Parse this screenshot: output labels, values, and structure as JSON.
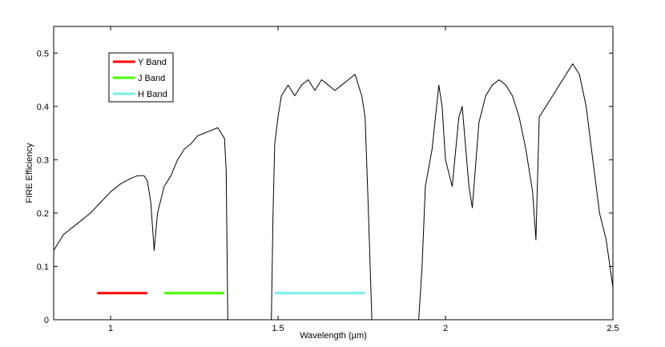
{
  "chart_data": {
    "type": "line",
    "xlabel": "Wavelength (µm)",
    "ylabel": "FIRE Efficiency",
    "xlim": [
      0.83,
      2.5
    ],
    "ylim": [
      0,
      0.55
    ],
    "x_ticks": [
      {
        "value": 1,
        "label": "1"
      },
      {
        "value": 1.5,
        "label": "1.5"
      },
      {
        "value": 2,
        "label": "2"
      },
      {
        "value": 2.5,
        "label": "2.5"
      }
    ],
    "y_ticks": [
      {
        "value": 0,
        "label": "0"
      },
      {
        "value": 0.1,
        "label": "0.1"
      },
      {
        "value": 0.2,
        "label": "0.2"
      },
      {
        "value": 0.3,
        "label": "0.3"
      },
      {
        "value": 0.4,
        "label": "0.4"
      },
      {
        "value": 0.5,
        "label": "0.5"
      }
    ],
    "grid": false,
    "legend_position": "top-left",
    "series": [
      {
        "color": "#000000",
        "x": [
          0.83,
          0.86,
          0.9,
          0.94,
          0.97,
          1.0,
          1.03,
          1.06,
          1.08,
          1.1,
          1.11,
          1.12,
          1.13,
          1.14,
          1.16,
          1.18,
          1.2,
          1.22,
          1.24,
          1.26,
          1.28,
          1.3,
          1.32,
          1.34,
          1.345,
          1.35,
          1.4,
          1.45,
          1.48,
          1.485,
          1.49,
          1.5,
          1.51,
          1.53,
          1.55,
          1.57,
          1.59,
          1.61,
          1.63,
          1.65,
          1.67,
          1.69,
          1.71,
          1.73,
          1.74,
          1.75,
          1.76,
          1.77,
          1.775,
          1.78,
          1.79,
          1.85,
          1.9,
          1.92,
          1.93,
          1.94,
          1.96,
          1.98,
          1.99,
          2.0,
          2.02,
          2.04,
          2.05,
          2.07,
          2.08,
          2.1,
          2.12,
          2.14,
          2.16,
          2.18,
          2.2,
          2.22,
          2.24,
          2.26,
          2.27,
          2.28,
          2.3,
          2.32,
          2.34,
          2.36,
          2.37,
          2.38,
          2.4,
          2.42,
          2.44,
          2.46,
          2.48,
          2.5
        ],
        "y": [
          0.13,
          0.16,
          0.18,
          0.2,
          0.22,
          0.24,
          0.255,
          0.265,
          0.27,
          0.27,
          0.26,
          0.22,
          0.13,
          0.2,
          0.25,
          0.27,
          0.3,
          0.32,
          0.33,
          0.345,
          0.35,
          0.355,
          0.36,
          0.34,
          0.28,
          0.0,
          0.0,
          0.0,
          0.0,
          0.2,
          0.33,
          0.38,
          0.42,
          0.44,
          0.42,
          0.44,
          0.45,
          0.43,
          0.45,
          0.44,
          0.43,
          0.44,
          0.45,
          0.46,
          0.44,
          0.42,
          0.38,
          0.2,
          0.1,
          0.0,
          0.0,
          0.0,
          0.0,
          0.0,
          0.1,
          0.25,
          0.32,
          0.44,
          0.4,
          0.3,
          0.25,
          0.38,
          0.4,
          0.25,
          0.21,
          0.37,
          0.42,
          0.44,
          0.45,
          0.44,
          0.42,
          0.38,
          0.32,
          0.24,
          0.15,
          0.38,
          0.4,
          0.42,
          0.44,
          0.46,
          0.47,
          0.48,
          0.46,
          0.4,
          0.3,
          0.2,
          0.15,
          0.06
        ]
      },
      {
        "name": "Y Band",
        "color": "#ff0000",
        "x": [
          0.96,
          1.11
        ],
        "y": [
          0.05,
          0.05
        ]
      },
      {
        "name": "J Band",
        "color": "#44ff00",
        "x": [
          1.16,
          1.34
        ],
        "y": [
          0.05,
          0.05
        ]
      },
      {
        "name": "H Band",
        "color": "#77eeee",
        "x": [
          1.49,
          1.76
        ],
        "y": [
          0.05,
          0.05
        ]
      }
    ]
  }
}
